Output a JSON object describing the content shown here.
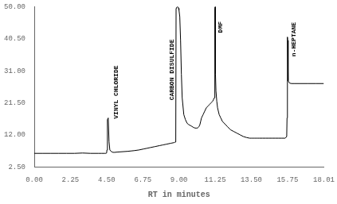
{
  "chart_data": {
    "type": "line",
    "xlabel": "RT in minutes",
    "color": "#000000",
    "grid": false,
    "xlim": [
      0.0,
      18.01
    ],
    "ylim": [
      2.5,
      50.0
    ],
    "xticks": [
      {
        "value": 0.0,
        "label": "0.00"
      },
      2.25,
      {
        "value": 4.5,
        "label": "4.50"
      },
      6.75,
      {
        "value": 9.0,
        "label": "9.00"
      },
      11.25,
      {
        "value": 13.5,
        "label": "13.50"
      },
      15.75,
      18.01
    ],
    "yticks": [
      {
        "value": 2.5,
        "label": "2.50"
      },
      {
        "value": 12.0,
        "label": "12.00"
      },
      {
        "value": 21.5,
        "label": "21.50"
      },
      {
        "value": 31.0,
        "label": "31.00"
      },
      {
        "value": 40.5,
        "label": "40.50"
      },
      {
        "value": 50.0,
        "label": "50.00"
      }
    ],
    "annotations": [
      {
        "text": "VINYL CHLORIDE",
        "x": 5.1,
        "y": 16.5
      },
      {
        "text": "CARBON DISULFIDE",
        "x": 8.55,
        "y": 22.0
      },
      {
        "text": "DMF",
        "x": 11.6,
        "y": 42.0
      },
      {
        "text": "n-HEPTANE",
        "x": 16.15,
        "y": 35.0
      }
    ],
    "x": [
      0.0,
      0.5,
      1.0,
      1.5,
      2.0,
      2.5,
      3.0,
      3.5,
      4.0,
      4.2,
      4.4,
      4.45,
      4.5,
      4.52,
      4.55,
      4.6,
      4.65,
      4.7,
      4.8,
      4.9,
      5.0,
      5.2,
      5.5,
      5.8,
      6.0,
      6.2,
      6.5,
      6.8,
      7.0,
      7.2,
      7.5,
      7.8,
      8.0,
      8.2,
      8.5,
      8.7,
      8.75,
      8.8,
      8.82,
      8.85,
      8.87,
      8.89,
      8.9,
      8.91,
      8.93,
      8.95,
      8.97,
      9.0,
      9.05,
      9.1,
      9.15,
      9.2,
      9.3,
      9.4,
      9.5,
      9.6,
      9.7,
      9.8,
      9.9,
      10.0,
      10.1,
      10.15,
      10.2,
      10.25,
      10.3,
      10.35,
      10.4,
      10.5,
      10.6,
      10.7,
      10.8,
      10.9,
      11.0,
      11.1,
      11.15,
      11.2,
      11.22,
      11.24,
      11.25,
      11.26,
      11.27,
      11.28,
      11.3,
      11.35,
      11.4,
      11.5,
      11.6,
      11.7,
      11.8,
      11.9,
      12.0,
      12.2,
      12.4,
      12.6,
      12.8,
      13.0,
      13.2,
      13.4,
      13.5,
      13.6,
      13.7,
      13.8,
      13.9,
      14.0,
      14.2,
      14.4,
      14.6,
      14.8,
      15.0,
      15.2,
      15.4,
      15.6,
      15.65,
      15.7,
      15.72,
      15.74,
      15.75,
      15.76,
      15.78,
      15.8,
      15.85,
      15.9,
      16.0,
      16.2,
      16.5,
      17.0,
      17.5,
      18.01
    ],
    "values": [
      6.5,
      6.5,
      6.5,
      6.5,
      6.5,
      6.5,
      6.6,
      6.5,
      6.5,
      6.5,
      6.5,
      6.5,
      6.6,
      7.5,
      16.5,
      17.0,
      10.0,
      7.5,
      7.0,
      6.8,
      6.8,
      6.9,
      7.0,
      7.1,
      7.2,
      7.3,
      7.5,
      7.8,
      8.0,
      8.2,
      8.5,
      8.8,
      9.0,
      9.2,
      9.5,
      9.7,
      9.8,
      9.85,
      49.5,
      49.8,
      49.9,
      49.95,
      50.0,
      49.95,
      49.9,
      49.8,
      49.5,
      49.0,
      47.0,
      40.0,
      30.0,
      23.0,
      18.0,
      16.5,
      15.5,
      15.0,
      14.8,
      14.5,
      14.2,
      14.0,
      14.0,
      14.0,
      14.2,
      14.5,
      15.0,
      16.0,
      17.0,
      18.0,
      19.0,
      20.0,
      20.5,
      21.0,
      21.5,
      22.0,
      22.5,
      23.0,
      30.0,
      49.5,
      50.0,
      49.5,
      40.0,
      30.0,
      25.0,
      22.0,
      20.0,
      18.0,
      17.0,
      16.0,
      15.5,
      15.0,
      14.5,
      13.5,
      13.0,
      12.5,
      12.0,
      11.5,
      11.2,
      11.0,
      11.0,
      11.0,
      11.0,
      11.0,
      11.0,
      11.0,
      11.0,
      11.0,
      11.0,
      11.0,
      11.0,
      11.0,
      11.0,
      11.0,
      11.2,
      11.5,
      17.0,
      40.5,
      41.0,
      40.0,
      35.0,
      28.0,
      27.5,
      27.3,
      27.2,
      27.2,
      27.2,
      27.2,
      27.2,
      27.2
    ]
  }
}
